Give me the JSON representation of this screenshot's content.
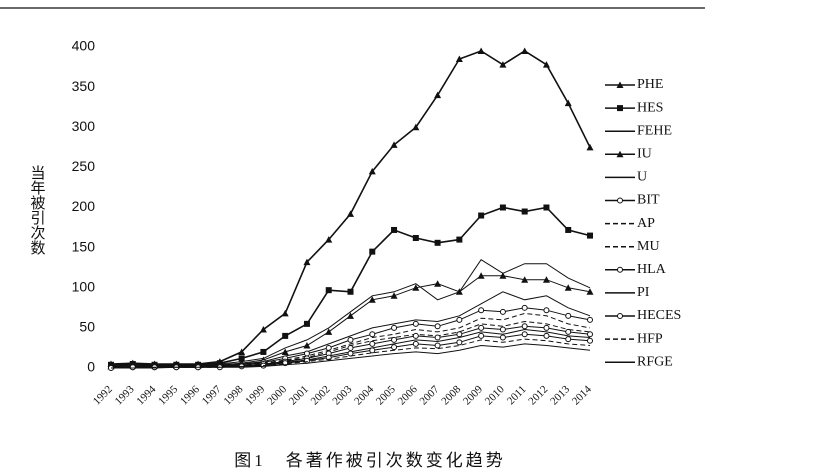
{
  "chart_data": {
    "type": "line",
    "ylabel": "当年被引次数",
    "caption": "图1　各著作被引次数变化趋势",
    "categories": [
      "1992",
      "1993",
      "1994",
      "1995",
      "1996",
      "1997",
      "1998",
      "1999",
      "2000",
      "2001",
      "2002",
      "2003",
      "2004",
      "2005",
      "2006",
      "2007",
      "2008",
      "2009",
      "2010",
      "2011",
      "2012",
      "2013",
      "2014"
    ],
    "ylim": [
      0,
      400
    ],
    "yticks": [
      0,
      50,
      100,
      150,
      200,
      250,
      300,
      350,
      400
    ],
    "series": [
      {
        "name": "PHE",
        "color": "#111111",
        "marker": "triangle",
        "dash": false,
        "values": [
          5,
          6,
          5,
          5,
          5,
          8,
          20,
          48,
          68,
          132,
          160,
          192,
          245,
          278,
          300,
          340,
          385,
          395,
          378,
          395,
          378,
          330,
          275
        ]
      },
      {
        "name": "HES",
        "color": "#111111",
        "marker": "square",
        "dash": false,
        "values": [
          4,
          5,
          4,
          4,
          4,
          6,
          12,
          20,
          40,
          55,
          97,
          95,
          145,
          172,
          162,
          156,
          160,
          190,
          200,
          195,
          200,
          172,
          165
        ]
      },
      {
        "name": "FEHE",
        "color": "#111111",
        "marker": "none",
        "dash": false,
        "values": [
          3,
          4,
          3,
          3,
          4,
          5,
          8,
          12,
          25,
          35,
          50,
          70,
          90,
          95,
          105,
          85,
          95,
          135,
          118,
          130,
          130,
          112,
          100
        ]
      },
      {
        "name": "IU",
        "color": "#111111",
        "marker": "triangle",
        "dash": false,
        "values": [
          2,
          3,
          3,
          3,
          3,
          4,
          6,
          10,
          20,
          28,
          45,
          65,
          85,
          90,
          100,
          105,
          95,
          115,
          115,
          110,
          110,
          100,
          95
        ]
      },
      {
        "name": "U",
        "color": "#111111",
        "marker": "none",
        "dash": false,
        "values": [
          1,
          2,
          2,
          2,
          2,
          3,
          5,
          8,
          15,
          20,
          30,
          40,
          50,
          55,
          60,
          58,
          65,
          80,
          95,
          85,
          90,
          75,
          65
        ]
      },
      {
        "name": "BIT",
        "color": "#111111",
        "marker": "circle",
        "dash": false,
        "values": [
          1,
          2,
          2,
          2,
          2,
          3,
          4,
          7,
          12,
          18,
          25,
          35,
          42,
          50,
          55,
          52,
          60,
          72,
          70,
          75,
          72,
          65,
          60
        ]
      },
      {
        "name": "AP",
        "color": "#111111",
        "marker": "none",
        "dash": true,
        "values": [
          1,
          1,
          1,
          1,
          2,
          2,
          4,
          6,
          10,
          15,
          22,
          30,
          38,
          42,
          48,
          45,
          50,
          62,
          60,
          68,
          65,
          55,
          50
        ]
      },
      {
        "name": "MU",
        "color": "#111111",
        "marker": "none",
        "dash": true,
        "values": [
          1,
          1,
          1,
          1,
          1,
          2,
          3,
          5,
          9,
          13,
          20,
          28,
          34,
          38,
          42,
          40,
          45,
          55,
          52,
          58,
          55,
          48,
          45
        ]
      },
      {
        "name": "HLA",
        "color": "#111111",
        "marker": "circle",
        "dash": false,
        "values": [
          1,
          1,
          1,
          1,
          1,
          2,
          3,
          5,
          8,
          12,
          18,
          25,
          30,
          35,
          40,
          38,
          42,
          50,
          48,
          52,
          50,
          45,
          42
        ]
      },
      {
        "name": "PI",
        "color": "#111111",
        "marker": "none",
        "dash": false,
        "values": [
          0,
          1,
          1,
          1,
          1,
          2,
          2,
          4,
          7,
          10,
          15,
          20,
          25,
          30,
          35,
          33,
          38,
          45,
          42,
          48,
          45,
          40,
          38
        ]
      },
      {
        "name": "HECES",
        "color": "#111111",
        "marker": "circle",
        "dash": false,
        "values": [
          0,
          1,
          1,
          1,
          1,
          1,
          2,
          3,
          6,
          9,
          13,
          18,
          22,
          26,
          30,
          28,
          32,
          40,
          38,
          42,
          40,
          36,
          34
        ]
      },
      {
        "name": "HFP",
        "color": "#111111",
        "marker": "none",
        "dash": true,
        "values": [
          0,
          0,
          1,
          1,
          1,
          1,
          2,
          3,
          5,
          8,
          11,
          15,
          19,
          22,
          25,
          24,
          28,
          35,
          32,
          36,
          34,
          30,
          28
        ]
      },
      {
        "name": "RFGE",
        "color": "#111111",
        "marker": "none",
        "dash": false,
        "values": [
          0,
          0,
          0,
          1,
          1,
          1,
          1,
          2,
          4,
          6,
          9,
          12,
          15,
          18,
          20,
          18,
          22,
          28,
          26,
          30,
          28,
          25,
          22
        ]
      }
    ]
  }
}
